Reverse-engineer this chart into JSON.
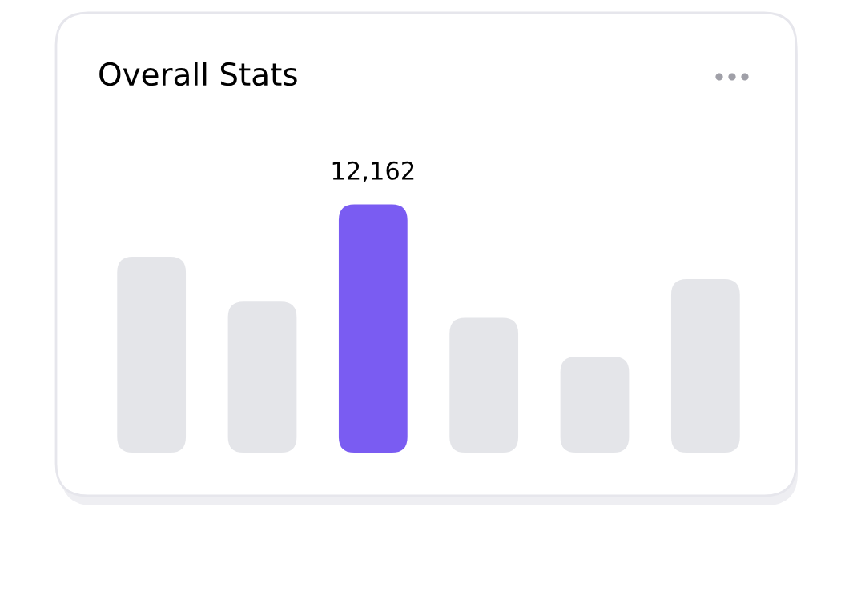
{
  "chart_data": {
    "type": "bar",
    "title": "Overall Stats",
    "categories": [
      null,
      null,
      null,
      null,
      null,
      null
    ],
    "values": [
      9600,
      7400,
      12162,
      6600,
      4700,
      8500
    ],
    "colors": [
      "#e4e5e9",
      "#e4e5e9",
      "#7a5cf2",
      "#e4e5e9",
      "#e4e5e9",
      "#e4e5e9"
    ],
    "value_labels": [
      null,
      null,
      "12,162",
      null,
      null,
      null
    ],
    "grid": false,
    "legend": false
  }
}
